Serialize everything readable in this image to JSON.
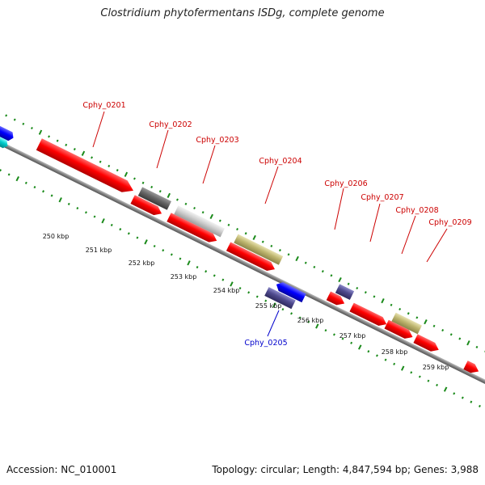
{
  "title": "Clostridium phytofermentans ISDg, complete genome",
  "footer": {
    "accession": "Accession: NC_010001",
    "summary": "Topology: circular; Length: 4,847,594 bp; Genes: 3,988"
  },
  "colors": {
    "forward_gene": "#ff0000",
    "reverse_gene": "#0000ff",
    "forward_label": "#cc0000",
    "reverse_label": "#0000cc",
    "backbone": "#808080",
    "tick": "#1a8a1a"
  },
  "scale": {
    "tick_labels": [
      "250 kbp",
      "251 kbp",
      "252 kbp",
      "253 kbp",
      "254 kbp",
      "255 kbp",
      "256 kbp",
      "257 kbp",
      "258 kbp",
      "259 kbp"
    ]
  },
  "genes": [
    {
      "id": "Cphy_0201",
      "label": "Cphy_0201",
      "strand": "forward",
      "labeled": true
    },
    {
      "id": "Cphy_0202",
      "label": "Cphy_0202",
      "strand": "forward",
      "labeled": true
    },
    {
      "id": "Cphy_0203",
      "label": "Cphy_0203",
      "strand": "forward",
      "labeled": true
    },
    {
      "id": "Cphy_0204",
      "label": "Cphy_0204",
      "strand": "forward",
      "labeled": true
    },
    {
      "id": "Cphy_0205",
      "label": "Cphy_0205",
      "strand": "reverse",
      "labeled": true
    },
    {
      "id": "Cphy_0206",
      "label": "Cphy_0206",
      "strand": "forward",
      "labeled": true
    },
    {
      "id": "Cphy_0207",
      "label": "Cphy_0207",
      "strand": "forward",
      "labeled": true
    },
    {
      "id": "Cphy_0208",
      "label": "Cphy_0208",
      "strand": "forward",
      "labeled": true
    },
    {
      "id": "Cphy_0209",
      "label": "Cphy_0209",
      "strand": "forward",
      "labeled": true
    }
  ]
}
